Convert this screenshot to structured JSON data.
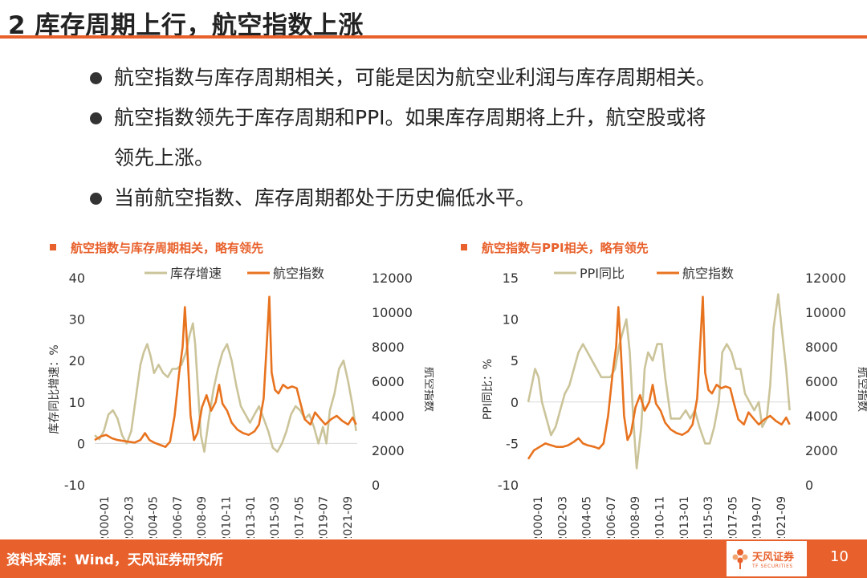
{
  "header": {
    "title": "2 库存周期上行，航空指数上涨"
  },
  "bullets": [
    {
      "text": "航空指数与库存周期相关，可能是因为航空业利润与库存周期相关。"
    },
    {
      "text": "航空指数领先于库存周期和PPI。如果库存周期将上升，航空股或将",
      "continuation": "领先上涨。"
    },
    {
      "text": "当前航空指数、库存周期都处于历史偏低水平。"
    }
  ],
  "footer": {
    "source": "资料来源：Wind，天风证券研究所",
    "page_number": "10",
    "logo_text": "天风证券",
    "logo_subtext": "TF SECURITIES"
  },
  "colors": {
    "accent": "#e8612c",
    "series_beige": "#cbc49a",
    "series_orange": "#e8731f"
  },
  "chart_data": [
    {
      "type": "line",
      "title": "航空指数与库存周期相关，略有领先",
      "x_tick_labels": [
        "2000-01",
        "2002-03",
        "2004-05",
        "2006-07",
        "2008-09",
        "2010-11",
        "2013-01",
        "2015-03",
        "2017-05",
        "2019-07",
        "2021-09"
      ],
      "x_range": [
        2000.0,
        2023.0
      ],
      "y_left": {
        "label": "库存同比增速：%",
        "range": [
          -10,
          40
        ],
        "ticks": [
          "-10",
          "0",
          "10",
          "20",
          "30",
          "40"
        ]
      },
      "y_right": {
        "label": "航空指数",
        "range": [
          0,
          12000
        ],
        "ticks": [
          "0",
          "2000",
          "4000",
          "6000",
          "8000",
          "10000",
          "12000"
        ]
      },
      "legend": {
        "placement": "top"
      },
      "series": [
        {
          "name": "库存增速",
          "axis": "left",
          "color": "#cbc49a",
          "points": [
            [
              2000.0,
              2
            ],
            [
              2000.4,
              1
            ],
            [
              2000.8,
              3
            ],
            [
              2001.2,
              7
            ],
            [
              2001.6,
              8
            ],
            [
              2002.0,
              6
            ],
            [
              2002.4,
              2
            ],
            [
              2002.8,
              0
            ],
            [
              2003.2,
              3
            ],
            [
              2003.6,
              11
            ],
            [
              2004.0,
              19
            ],
            [
              2004.3,
              22
            ],
            [
              2004.6,
              24
            ],
            [
              2004.9,
              21
            ],
            [
              2005.2,
              17
            ],
            [
              2005.6,
              19
            ],
            [
              2006.0,
              17
            ],
            [
              2006.4,
              16
            ],
            [
              2006.8,
              18
            ],
            [
              2007.2,
              18
            ],
            [
              2007.6,
              19
            ],
            [
              2008.0,
              22
            ],
            [
              2008.3,
              26
            ],
            [
              2008.6,
              29
            ],
            [
              2008.8,
              24
            ],
            [
              2009.0,
              15
            ],
            [
              2009.3,
              2
            ],
            [
              2009.6,
              -2
            ],
            [
              2010.0,
              6
            ],
            [
              2010.4,
              13
            ],
            [
              2010.8,
              18
            ],
            [
              2011.2,
              22
            ],
            [
              2011.6,
              24
            ],
            [
              2012.0,
              20
            ],
            [
              2012.4,
              14
            ],
            [
              2012.8,
              9
            ],
            [
              2013.2,
              7
            ],
            [
              2013.6,
              5
            ],
            [
              2014.0,
              7
            ],
            [
              2014.4,
              9
            ],
            [
              2014.8,
              6
            ],
            [
              2015.2,
              3
            ],
            [
              2015.6,
              -1
            ],
            [
              2016.0,
              -2
            ],
            [
              2016.4,
              0
            ],
            [
              2016.8,
              3
            ],
            [
              2017.2,
              7
            ],
            [
              2017.6,
              9
            ],
            [
              2018.0,
              8
            ],
            [
              2018.4,
              6
            ],
            [
              2018.8,
              7
            ],
            [
              2019.2,
              4
            ],
            [
              2019.6,
              0
            ],
            [
              2020.0,
              4
            ],
            [
              2020.3,
              0
            ],
            [
              2020.6,
              8
            ],
            [
              2021.0,
              12
            ],
            [
              2021.4,
              18
            ],
            [
              2021.8,
              20
            ],
            [
              2022.2,
              15
            ],
            [
              2022.6,
              9
            ],
            [
              2022.9,
              3
            ]
          ]
        },
        {
          "name": "航空指数",
          "axis": "right",
          "color": "#e8731f",
          "points": [
            [
              2000.0,
              2600
            ],
            [
              2000.5,
              2800
            ],
            [
              2001.0,
              2900
            ],
            [
              2001.5,
              2700
            ],
            [
              2002.0,
              2600
            ],
            [
              2002.5,
              2550
            ],
            [
              2003.0,
              2500
            ],
            [
              2003.5,
              2450
            ],
            [
              2004.0,
              2600
            ],
            [
              2004.4,
              3000
            ],
            [
              2004.8,
              2600
            ],
            [
              2005.2,
              2450
            ],
            [
              2005.8,
              2300
            ],
            [
              2006.2,
              2200
            ],
            [
              2006.6,
              2500
            ],
            [
              2007.0,
              4000
            ],
            [
              2007.4,
              6500
            ],
            [
              2007.7,
              8000
            ],
            [
              2007.9,
              10300
            ],
            [
              2008.1,
              8000
            ],
            [
              2008.4,
              4000
            ],
            [
              2008.7,
              2600
            ],
            [
              2009.0,
              3000
            ],
            [
              2009.4,
              4500
            ],
            [
              2009.8,
              5200
            ],
            [
              2010.2,
              4300
            ],
            [
              2010.6,
              4800
            ],
            [
              2010.9,
              5800
            ],
            [
              2011.2,
              4700
            ],
            [
              2011.6,
              4300
            ],
            [
              2012.0,
              3600
            ],
            [
              2012.5,
              3200
            ],
            [
              2013.0,
              3000
            ],
            [
              2013.5,
              2900
            ],
            [
              2014.0,
              3100
            ],
            [
              2014.4,
              3500
            ],
            [
              2014.8,
              5000
            ],
            [
              2015.1,
              8500
            ],
            [
              2015.3,
              10900
            ],
            [
              2015.5,
              6500
            ],
            [
              2015.8,
              5500
            ],
            [
              2016.1,
              5300
            ],
            [
              2016.5,
              5800
            ],
            [
              2016.9,
              5600
            ],
            [
              2017.3,
              5700
            ],
            [
              2017.7,
              5600
            ],
            [
              2018.0,
              4800
            ],
            [
              2018.4,
              3800
            ],
            [
              2018.9,
              3500
            ],
            [
              2019.3,
              4200
            ],
            [
              2019.8,
              3800
            ],
            [
              2020.2,
              3500
            ],
            [
              2020.7,
              3800
            ],
            [
              2021.2,
              4000
            ],
            [
              2021.7,
              3700
            ],
            [
              2022.2,
              3500
            ],
            [
              2022.6,
              3900
            ],
            [
              2022.9,
              3500
            ]
          ]
        }
      ]
    },
    {
      "type": "line",
      "title": "航空指数与PPI相关，略有领先",
      "x_tick_labels": [
        "2000-01",
        "2002-03",
        "2004-05",
        "2006-07",
        "2008-09",
        "2010-11",
        "2013-01",
        "2015-03",
        "2017-05",
        "2019-07",
        "2021-09"
      ],
      "x_range": [
        2000.0,
        2023.0
      ],
      "y_left": {
        "label": "PPI同比：%",
        "range": [
          -10,
          15
        ],
        "ticks": [
          "-10",
          "-5",
          "0",
          "5",
          "10",
          "15"
        ]
      },
      "y_right": {
        "label": "航空指数",
        "range": [
          0,
          12000
        ],
        "ticks": [
          "0",
          "2000",
          "4000",
          "6000",
          "8000",
          "10000",
          "12000"
        ]
      },
      "legend": {
        "placement": "top"
      },
      "series": [
        {
          "name": "PPI同比",
          "axis": "left",
          "color": "#cbc49a",
          "points": [
            [
              2000.0,
              0
            ],
            [
              2000.3,
              2
            ],
            [
              2000.6,
              4
            ],
            [
              2000.9,
              3
            ],
            [
              2001.2,
              0
            ],
            [
              2001.6,
              -2
            ],
            [
              2002.0,
              -4
            ],
            [
              2002.4,
              -3
            ],
            [
              2002.8,
              -1
            ],
            [
              2003.2,
              1
            ],
            [
              2003.6,
              2
            ],
            [
              2004.0,
              4
            ],
            [
              2004.4,
              6
            ],
            [
              2004.8,
              7
            ],
            [
              2005.2,
              6
            ],
            [
              2005.6,
              5
            ],
            [
              2006.0,
              4
            ],
            [
              2006.4,
              3
            ],
            [
              2006.8,
              3
            ],
            [
              2007.2,
              3
            ],
            [
              2007.6,
              4
            ],
            [
              2008.0,
              7
            ],
            [
              2008.4,
              9
            ],
            [
              2008.6,
              10
            ],
            [
              2008.9,
              6
            ],
            [
              2009.2,
              -2
            ],
            [
              2009.5,
              -8
            ],
            [
              2009.9,
              -3
            ],
            [
              2010.2,
              4
            ],
            [
              2010.5,
              6
            ],
            [
              2010.9,
              5
            ],
            [
              2011.3,
              7
            ],
            [
              2011.7,
              7
            ],
            [
              2012.0,
              3
            ],
            [
              2012.5,
              -2
            ],
            [
              2012.9,
              -2
            ],
            [
              2013.3,
              -2
            ],
            [
              2013.8,
              -1
            ],
            [
              2014.2,
              -2
            ],
            [
              2014.6,
              -1
            ],
            [
              2015.0,
              -3
            ],
            [
              2015.5,
              -5
            ],
            [
              2015.9,
              -5
            ],
            [
              2016.3,
              -3
            ],
            [
              2016.7,
              0
            ],
            [
              2017.0,
              6
            ],
            [
              2017.4,
              7
            ],
            [
              2017.8,
              6
            ],
            [
              2018.2,
              4
            ],
            [
              2018.6,
              4
            ],
            [
              2019.0,
              1
            ],
            [
              2019.4,
              0
            ],
            [
              2019.8,
              -1
            ],
            [
              2020.2,
              0
            ],
            [
              2020.5,
              -3
            ],
            [
              2020.9,
              -2
            ],
            [
              2021.2,
              2
            ],
            [
              2021.5,
              9
            ],
            [
              2021.9,
              13
            ],
            [
              2022.2,
              9
            ],
            [
              2022.6,
              4
            ],
            [
              2022.9,
              -1
            ]
          ]
        },
        {
          "name": "航空指数",
          "axis": "right",
          "color": "#e8731f",
          "points": [
            [
              2000.0,
              1500
            ],
            [
              2000.5,
              2000
            ],
            [
              2001.0,
              2200
            ],
            [
              2001.5,
              2400
            ],
            [
              2002.0,
              2300
            ],
            [
              2002.5,
              2200
            ],
            [
              2003.0,
              2200
            ],
            [
              2003.5,
              2300
            ],
            [
              2004.0,
              2500
            ],
            [
              2004.4,
              2700
            ],
            [
              2004.8,
              2400
            ],
            [
              2005.2,
              2300
            ],
            [
              2005.8,
              2200
            ],
            [
              2006.2,
              2100
            ],
            [
              2006.6,
              2400
            ],
            [
              2007.0,
              4000
            ],
            [
              2007.4,
              6500
            ],
            [
              2007.7,
              8000
            ],
            [
              2007.9,
              10300
            ],
            [
              2008.1,
              8000
            ],
            [
              2008.4,
              4000
            ],
            [
              2008.7,
              2600
            ],
            [
              2009.0,
              3000
            ],
            [
              2009.4,
              4500
            ],
            [
              2009.8,
              5200
            ],
            [
              2010.2,
              4300
            ],
            [
              2010.6,
              4800
            ],
            [
              2010.9,
              5800
            ],
            [
              2011.2,
              4700
            ],
            [
              2011.6,
              4300
            ],
            [
              2012.0,
              3600
            ],
            [
              2012.5,
              3200
            ],
            [
              2013.0,
              3000
            ],
            [
              2013.5,
              2900
            ],
            [
              2014.0,
              3100
            ],
            [
              2014.4,
              3500
            ],
            [
              2014.8,
              5000
            ],
            [
              2015.1,
              8500
            ],
            [
              2015.3,
              10900
            ],
            [
              2015.5,
              6500
            ],
            [
              2015.8,
              5500
            ],
            [
              2016.1,
              5300
            ],
            [
              2016.5,
              5800
            ],
            [
              2016.9,
              5600
            ],
            [
              2017.3,
              5700
            ],
            [
              2017.7,
              5600
            ],
            [
              2018.0,
              4800
            ],
            [
              2018.4,
              3800
            ],
            [
              2018.9,
              3500
            ],
            [
              2019.3,
              4200
            ],
            [
              2019.8,
              3800
            ],
            [
              2020.2,
              3500
            ],
            [
              2020.7,
              3800
            ],
            [
              2021.2,
              4000
            ],
            [
              2021.7,
              3700
            ],
            [
              2022.2,
              3500
            ],
            [
              2022.6,
              3900
            ],
            [
              2022.9,
              3500
            ]
          ]
        }
      ]
    }
  ]
}
